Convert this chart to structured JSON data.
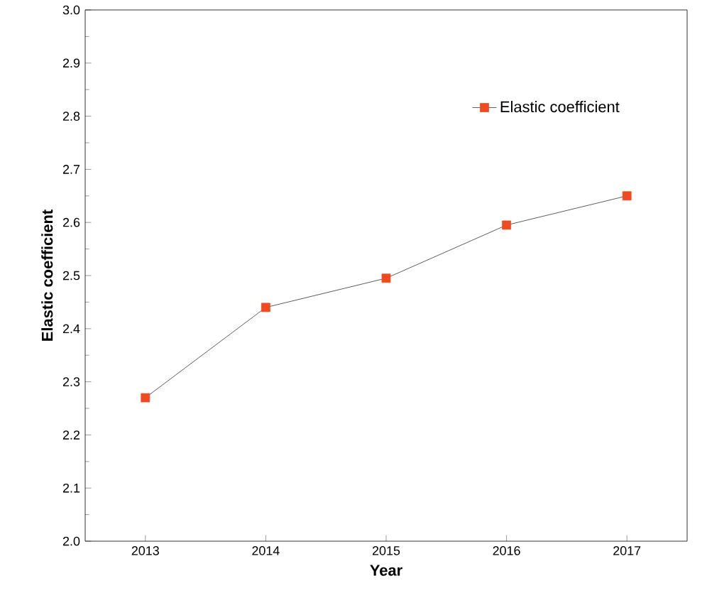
{
  "chart_data": {
    "type": "line",
    "xlabel": "Year",
    "ylabel": "Elastic coefficient",
    "categories": [
      "2013",
      "2014",
      "2015",
      "2016",
      "2017"
    ],
    "series": [
      {
        "name": "Elastic coefficient",
        "color": "#f04a20",
        "values": [
          2.27,
          2.44,
          2.495,
          2.595,
          2.65
        ]
      }
    ],
    "ylim": [
      2.0,
      3.0
    ],
    "yticks": [
      {
        "value": 2.0,
        "label": "2.0"
      },
      {
        "value": 2.1,
        "label": "2.1"
      },
      {
        "value": 2.2,
        "label": "2.2"
      },
      {
        "value": 2.3,
        "label": "2.3"
      },
      {
        "value": 2.4,
        "label": "2.4"
      },
      {
        "value": 2.5,
        "label": "2.5"
      },
      {
        "value": 2.6,
        "label": "2.6"
      },
      {
        "value": 2.7,
        "label": "2.7"
      },
      {
        "value": 2.8,
        "label": "2.8"
      },
      {
        "value": 2.9,
        "label": "2.9"
      },
      {
        "value": 3.0,
        "label": "3.0"
      }
    ],
    "legend": "top right",
    "marker": "square",
    "line_style": "solid",
    "grid": false
  }
}
